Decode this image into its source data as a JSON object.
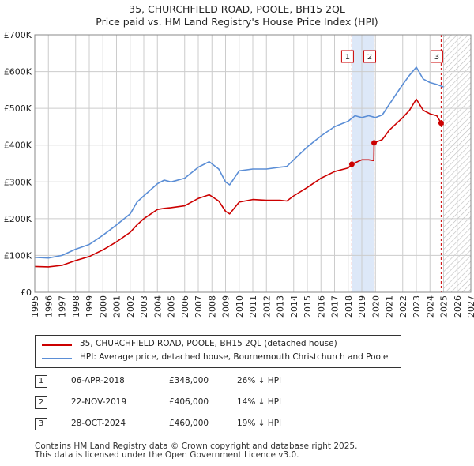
{
  "title_line1": "35, CHURCHFIELD ROAD, POOLE, BH15 2QL",
  "title_line2": "Price paid vs. HM Land Registry's House Price Index (HPI)",
  "chart_data": {
    "type": "line",
    "xlabel": "",
    "ylabel": "",
    "xlim": [
      1995,
      2027
    ],
    "ylim": [
      0,
      700000
    ],
    "x_ticks": [
      "1995",
      "1996",
      "1997",
      "1998",
      "1999",
      "2000",
      "2001",
      "2002",
      "2003",
      "2004",
      "2005",
      "2006",
      "2007",
      "2008",
      "2009",
      "2010",
      "2011",
      "2012",
      "2013",
      "2014",
      "2015",
      "2016",
      "2017",
      "2018",
      "2019",
      "2020",
      "2021",
      "2022",
      "2023",
      "2024",
      "2025",
      "2026",
      "2027"
    ],
    "y_ticks": [
      {
        "value": 0,
        "label": "£0"
      },
      {
        "value": 100000,
        "label": "£100K"
      },
      {
        "value": 200000,
        "label": "£200K"
      },
      {
        "value": 300000,
        "label": "£300K"
      },
      {
        "value": 400000,
        "label": "£400K"
      },
      {
        "value": 500000,
        "label": "£500K"
      },
      {
        "value": 600000,
        "label": "£600K"
      },
      {
        "value": 700000,
        "label": "£700K"
      }
    ],
    "grid": true,
    "shaded_period": [
      2018.27,
      2019.9
    ],
    "forecast_from": 2025.0,
    "colors": {
      "property": "#cc0000",
      "hpi": "#5b8ed6",
      "shade": "#dde8f8",
      "vline": "#cc0000",
      "grid": "#cccccc"
    },
    "series": [
      {
        "name": "35, CHURCHFIELD ROAD, POOLE, BH15 2QL (detached house)",
        "color": "#cc0000",
        "x": [
          1995.0,
          1996.0,
          1997.0,
          1998.0,
          1999.0,
          2000.0,
          2001.0,
          2002.0,
          2002.5,
          2003.0,
          2004.0,
          2004.5,
          2005.0,
          2006.0,
          2007.0,
          2007.8,
          2008.5,
          2009.0,
          2009.3,
          2010.0,
          2011.0,
          2012.0,
          2013.0,
          2013.5,
          2014.0,
          2015.0,
          2016.0,
          2017.0,
          2018.0,
          2018.27,
          2018.5,
          2019.0,
          2019.5,
          2019.88,
          2019.9,
          2020.5,
          2021.0,
          2022.0,
          2022.5,
          2023.0,
          2023.5,
          2024.0,
          2024.5,
          2024.82,
          2025.0
        ],
        "values": [
          70000,
          69000,
          73000,
          86000,
          97000,
          115000,
          137000,
          163000,
          183000,
          200000,
          225000,
          228000,
          230000,
          235000,
          255000,
          265000,
          248000,
          220000,
          213000,
          245000,
          252000,
          250000,
          250000,
          248000,
          262000,
          285000,
          310000,
          328000,
          338000,
          348000,
          352000,
          360000,
          360000,
          358000,
          406000,
          415000,
          440000,
          475000,
          495000,
          525000,
          495000,
          485000,
          480000,
          460000,
          455000
        ]
      },
      {
        "name": "HPI: Average price, detached house, Bournemouth Christchurch and Poole",
        "color": "#5b8ed6",
        "x": [
          1995.0,
          1996.0,
          1997.0,
          1998.0,
          1999.0,
          2000.0,
          2001.0,
          2002.0,
          2002.5,
          2003.0,
          2004.0,
          2004.5,
          2005.0,
          2006.0,
          2007.0,
          2007.8,
          2008.5,
          2009.0,
          2009.3,
          2010.0,
          2011.0,
          2012.0,
          2013.0,
          2013.5,
          2014.0,
          2015.0,
          2016.0,
          2017.0,
          2018.0,
          2018.5,
          2019.0,
          2019.5,
          2020.0,
          2020.5,
          2021.0,
          2022.0,
          2022.5,
          2023.0,
          2023.5,
          2024.0,
          2024.5,
          2025.0
        ],
        "values": [
          95000,
          93000,
          100000,
          117000,
          130000,
          155000,
          183000,
          213000,
          245000,
          262000,
          295000,
          305000,
          300000,
          310000,
          340000,
          355000,
          335000,
          300000,
          292000,
          330000,
          335000,
          335000,
          340000,
          342000,
          360000,
          395000,
          425000,
          450000,
          465000,
          480000,
          475000,
          480000,
          475000,
          482000,
          510000,
          565000,
          590000,
          612000,
          580000,
          570000,
          565000,
          558000
        ]
      }
    ],
    "sales": [
      {
        "label": "1",
        "x": 2018.27,
        "value": 348000
      },
      {
        "label": "2",
        "x": 2019.9,
        "value": 406000
      },
      {
        "label": "3",
        "x": 2024.82,
        "value": 460000
      }
    ]
  },
  "legend": {
    "property_label": "35, CHURCHFIELD ROAD, POOLE, BH15 2QL (detached house)",
    "hpi_label": "HPI: Average price, detached house, Bournemouth Christchurch and Poole"
  },
  "sales_table": [
    {
      "num": "1",
      "date": "06-APR-2018",
      "price": "£348,000",
      "hpi": "26% ↓ HPI"
    },
    {
      "num": "2",
      "date": "22-NOV-2019",
      "price": "£406,000",
      "hpi": "14% ↓ HPI"
    },
    {
      "num": "3",
      "date": "28-OCT-2024",
      "price": "£460,000",
      "hpi": "19% ↓ HPI"
    }
  ],
  "footer": {
    "line1": "Contains HM Land Registry data © Crown copyright and database right 2025.",
    "line2": "This data is licensed under the Open Government Licence v3.0."
  }
}
